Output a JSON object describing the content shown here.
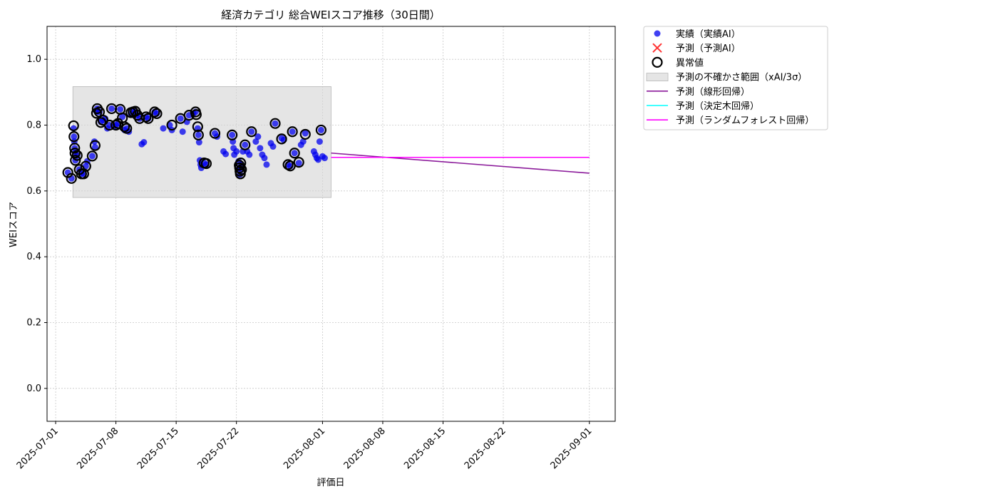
{
  "chart_data": {
    "type": "scatter",
    "title": "経済カテゴリ 総合WEIスコア推移（30日間）",
    "xlabel": "評価日",
    "ylabel": "WEIスコア",
    "x_ticks": [
      "2025-07-01",
      "2025-07-08",
      "2025-07-15",
      "2025-07-22",
      "2025-08-01",
      "2025-08-08",
      "2025-08-15",
      "2025-08-22",
      "2025-09-01"
    ],
    "y_ticks": [
      "0.0",
      "0.2",
      "0.4",
      "0.6",
      "0.8",
      "1.0"
    ],
    "xlim": [
      "2025-06-30",
      "2025-09-04"
    ],
    "ylim": [
      -0.1,
      1.1
    ],
    "grid": true,
    "legend_position": "outside-right-top",
    "legend": [
      {
        "key": "actual",
        "label": "実績（実績AI）",
        "marker": "dot",
        "color": "#0000ee"
      },
      {
        "key": "pred",
        "label": "予測（予測AI）",
        "marker": "x",
        "color": "#ff3333"
      },
      {
        "key": "anomaly",
        "label": "異常値",
        "marker": "ring",
        "color": "#000000"
      },
      {
        "key": "band",
        "label": "予測の不確かさ範囲（xAI/3σ）",
        "marker": "rect",
        "color": "#d3d3d3"
      },
      {
        "key": "linear",
        "label": "予測（線形回帰）",
        "marker": "line",
        "color": "#8b1a9a"
      },
      {
        "key": "tree",
        "label": "予測（決定木回帰）",
        "marker": "line",
        "color": "#00ffff"
      },
      {
        "key": "forest",
        "label": "予測（ランダムフォレスト回帰）",
        "marker": "line",
        "color": "#ff00ff"
      }
    ],
    "uncertainty_band": {
      "x": [
        "2025-07-03",
        "2025-08-02"
      ],
      "y": [
        0.58,
        0.917
      ]
    },
    "series": [
      {
        "key": "actual",
        "points": [
          [
            "2025-07-02 10:00",
            0.656
          ],
          [
            "2025-07-02 20:00",
            0.638
          ],
          [
            "2025-07-03 02:00",
            0.79
          ],
          [
            "2025-07-03 03:00",
            0.765
          ],
          [
            "2025-07-03 04:00",
            0.75
          ],
          [
            "2025-07-03 05:00",
            0.73
          ],
          [
            "2025-07-03 06:00",
            0.715
          ],
          [
            "2025-07-03 07:00",
            0.693
          ],
          [
            "2025-07-03 12:00",
            0.708
          ],
          [
            "2025-07-03 18:00",
            0.665
          ],
          [
            "2025-07-04 00:00",
            0.652
          ],
          [
            "2025-07-04 06:00",
            0.652
          ],
          [
            "2025-07-04 12:00",
            0.675
          ],
          [
            "2025-07-04 16:00",
            0.69
          ],
          [
            "2025-07-05 06:00",
            0.706
          ],
          [
            "2025-07-05 12:00",
            0.75
          ],
          [
            "2025-07-05 14:00",
            0.733
          ],
          [
            "2025-07-05 18:00",
            0.84
          ],
          [
            "2025-07-05 20:00",
            0.85
          ],
          [
            "2025-07-06 02:00",
            0.84
          ],
          [
            "2025-07-06 06:00",
            0.81
          ],
          [
            "2025-07-06 12:00",
            0.815
          ],
          [
            "2025-07-06 18:00",
            0.82
          ],
          [
            "2025-07-07 00:00",
            0.79
          ],
          [
            "2025-07-07 06:00",
            0.8
          ],
          [
            "2025-07-07 12:00",
            0.85
          ],
          [
            "2025-07-07 18:00",
            0.795
          ],
          [
            "2025-07-08 00:00",
            0.8
          ],
          [
            "2025-07-08 06:00",
            0.805
          ],
          [
            "2025-07-08 12:00",
            0.848
          ],
          [
            "2025-07-08 18:00",
            0.825
          ],
          [
            "2025-07-09 00:00",
            0.785
          ],
          [
            "2025-07-09 06:00",
            0.79
          ],
          [
            "2025-07-09 12:00",
            0.78
          ],
          [
            "2025-07-09 18:00",
            0.835
          ],
          [
            "2025-07-10 00:00",
            0.84
          ],
          [
            "2025-07-10 06:00",
            0.842
          ],
          [
            "2025-07-10 12:00",
            0.83
          ],
          [
            "2025-07-10 18:00",
            0.82
          ],
          [
            "2025-07-11 00:00",
            0.742
          ],
          [
            "2025-07-11 06:00",
            0.748
          ],
          [
            "2025-07-11 12:00",
            0.825
          ],
          [
            "2025-07-11 18:00",
            0.82
          ],
          [
            "2025-07-12 12:00",
            0.84
          ],
          [
            "2025-07-12 18:00",
            0.835
          ],
          [
            "2025-07-13 12:00",
            0.79
          ],
          [
            "2025-07-14 06:00",
            0.8
          ],
          [
            "2025-07-14 12:00",
            0.785
          ],
          [
            "2025-07-15 12:00",
            0.82
          ],
          [
            "2025-07-15 18:00",
            0.78
          ],
          [
            "2025-07-16 06:00",
            0.81
          ],
          [
            "2025-07-16 12:00",
            0.83
          ],
          [
            "2025-07-17 00:00",
            0.835
          ],
          [
            "2025-07-17 06:00",
            0.84
          ],
          [
            "2025-07-17 12:00",
            0.79
          ],
          [
            "2025-07-17 14:00",
            0.77
          ],
          [
            "2025-07-17 16:00",
            0.748
          ],
          [
            "2025-07-17 18:00",
            0.693
          ],
          [
            "2025-07-17 20:00",
            0.68
          ],
          [
            "2025-07-17 22:00",
            0.67
          ],
          [
            "2025-07-18 06:00",
            0.685
          ],
          [
            "2025-07-18 12:00",
            0.68
          ],
          [
            "2025-07-19 12:00",
            0.775
          ],
          [
            "2025-07-19 18:00",
            0.765
          ],
          [
            "2025-07-20 12:00",
            0.72
          ],
          [
            "2025-07-20 18:00",
            0.712
          ],
          [
            "2025-07-21 12:00",
            0.77
          ],
          [
            "2025-07-21 14:00",
            0.75
          ],
          [
            "2025-07-21 16:00",
            0.73
          ],
          [
            "2025-07-21 18:00",
            0.71
          ],
          [
            "2025-07-22 00:00",
            0.72
          ],
          [
            "2025-07-22 06:00",
            0.69
          ],
          [
            "2025-07-22 08:00",
            0.67
          ],
          [
            "2025-07-22 10:00",
            0.65
          ],
          [
            "2025-07-22 12:00",
            0.665
          ],
          [
            "2025-07-22 14:00",
            0.68
          ],
          [
            "2025-07-22 18:00",
            0.72
          ],
          [
            "2025-07-23 00:00",
            0.74
          ],
          [
            "2025-07-23 06:00",
            0.72
          ],
          [
            "2025-07-23 12:00",
            0.71
          ],
          [
            "2025-07-23 18:00",
            0.78
          ],
          [
            "2025-07-24 06:00",
            0.75
          ],
          [
            "2025-07-24 12:00",
            0.765
          ],
          [
            "2025-07-24 18:00",
            0.73
          ],
          [
            "2025-07-25 00:00",
            0.71
          ],
          [
            "2025-07-25 06:00",
            0.7
          ],
          [
            "2025-07-25 12:00",
            0.68
          ],
          [
            "2025-07-26 00:00",
            0.745
          ],
          [
            "2025-07-26 06:00",
            0.735
          ],
          [
            "2025-07-26 12:00",
            0.805
          ],
          [
            "2025-07-27 06:00",
            0.76
          ],
          [
            "2025-07-27 12:00",
            0.755
          ],
          [
            "2025-07-28 00:00",
            0.68
          ],
          [
            "2025-07-28 06:00",
            0.675
          ],
          [
            "2025-07-28 12:00",
            0.78
          ],
          [
            "2025-07-28 18:00",
            0.715
          ],
          [
            "2025-07-29 06:00",
            0.685
          ],
          [
            "2025-07-29 12:00",
            0.74
          ],
          [
            "2025-07-29 18:00",
            0.75
          ],
          [
            "2025-07-30 00:00",
            0.775
          ],
          [
            "2025-07-31 00:00",
            0.72
          ],
          [
            "2025-07-31 04:00",
            0.71
          ],
          [
            "2025-07-31 08:00",
            0.7
          ],
          [
            "2025-07-31 12:00",
            0.695
          ],
          [
            "2025-07-31 16:00",
            0.75
          ],
          [
            "2025-07-31 20:00",
            0.785
          ],
          [
            "2025-08-01 00:00",
            0.705
          ],
          [
            "2025-08-01 06:00",
            0.7
          ]
        ]
      },
      {
        "key": "anomaly",
        "points": [
          [
            "2025-07-02 10:00",
            0.656
          ],
          [
            "2025-07-02 20:00",
            0.638
          ],
          [
            "2025-07-03 02:00",
            0.798
          ],
          [
            "2025-07-03 03:00",
            0.765
          ],
          [
            "2025-07-03 05:00",
            0.73
          ],
          [
            "2025-07-03 06:00",
            0.715
          ],
          [
            "2025-07-03 07:00",
            0.693
          ],
          [
            "2025-07-03 12:00",
            0.708
          ],
          [
            "2025-07-03 18:00",
            0.665
          ],
          [
            "2025-07-04 00:00",
            0.652
          ],
          [
            "2025-07-04 06:00",
            0.652
          ],
          [
            "2025-07-04 12:00",
            0.675
          ],
          [
            "2025-07-05 06:00",
            0.706
          ],
          [
            "2025-07-05 14:00",
            0.738
          ],
          [
            "2025-07-05 18:00",
            0.836
          ],
          [
            "2025-07-05 20:00",
            0.85
          ],
          [
            "2025-07-06 02:00",
            0.84
          ],
          [
            "2025-07-06 06:00",
            0.808
          ],
          [
            "2025-07-06 12:00",
            0.815
          ],
          [
            "2025-07-07 06:00",
            0.8
          ],
          [
            "2025-07-07 12:00",
            0.85
          ],
          [
            "2025-07-08 00:00",
            0.8
          ],
          [
            "2025-07-08 06:00",
            0.805
          ],
          [
            "2025-07-08 12:00",
            0.848
          ],
          [
            "2025-07-08 18:00",
            0.822
          ],
          [
            "2025-07-09 00:00",
            0.795
          ],
          [
            "2025-07-09 06:00",
            0.79
          ],
          [
            "2025-07-09 18:00",
            0.838
          ],
          [
            "2025-07-10 00:00",
            0.84
          ],
          [
            "2025-07-10 06:00",
            0.842
          ],
          [
            "2025-07-10 12:00",
            0.83
          ],
          [
            "2025-07-10 18:00",
            0.82
          ],
          [
            "2025-07-11 12:00",
            0.825
          ],
          [
            "2025-07-11 18:00",
            0.82
          ],
          [
            "2025-07-12 12:00",
            0.84
          ],
          [
            "2025-07-12 18:00",
            0.835
          ],
          [
            "2025-07-14 12:00",
            0.8
          ],
          [
            "2025-07-15 12:00",
            0.82
          ],
          [
            "2025-07-16 12:00",
            0.83
          ],
          [
            "2025-07-17 06:00",
            0.84
          ],
          [
            "2025-07-17 08:00",
            0.832
          ],
          [
            "2025-07-17 12:00",
            0.795
          ],
          [
            "2025-07-17 14:00",
            0.77
          ],
          [
            "2025-07-18 06:00",
            0.685
          ],
          [
            "2025-07-18 12:00",
            0.683
          ],
          [
            "2025-07-19 12:00",
            0.775
          ],
          [
            "2025-07-21 12:00",
            0.77
          ],
          [
            "2025-07-22 08:00",
            0.678
          ],
          [
            "2025-07-22 09:00",
            0.67
          ],
          [
            "2025-07-22 10:00",
            0.66
          ],
          [
            "2025-07-22 11:00",
            0.652
          ],
          [
            "2025-07-22 12:00",
            0.685
          ],
          [
            "2025-07-22 14:00",
            0.665
          ],
          [
            "2025-07-23 00:00",
            0.74
          ],
          [
            "2025-07-23 18:00",
            0.78
          ],
          [
            "2025-07-26 12:00",
            0.805
          ],
          [
            "2025-07-27 06:00",
            0.758
          ],
          [
            "2025-07-28 12:00",
            0.78
          ],
          [
            "2025-07-28 18:00",
            0.715
          ],
          [
            "2025-07-28 00:00",
            0.68
          ],
          [
            "2025-07-28 06:00",
            0.676
          ],
          [
            "2025-07-29 06:00",
            0.687
          ],
          [
            "2025-07-30 00:00",
            0.772
          ],
          [
            "2025-07-31 20:00",
            0.785
          ]
        ]
      },
      {
        "key": "linear",
        "line": [
          [
            "2025-08-02",
            0.715
          ],
          [
            "2025-09-01",
            0.654
          ]
        ]
      },
      {
        "key": "tree",
        "line": [
          [
            "2025-08-02",
            0.702
          ],
          [
            "2025-09-01",
            0.702
          ]
        ]
      },
      {
        "key": "forest",
        "line": [
          [
            "2025-08-02",
            0.702
          ],
          [
            "2025-09-01",
            0.702
          ]
        ]
      }
    ]
  }
}
